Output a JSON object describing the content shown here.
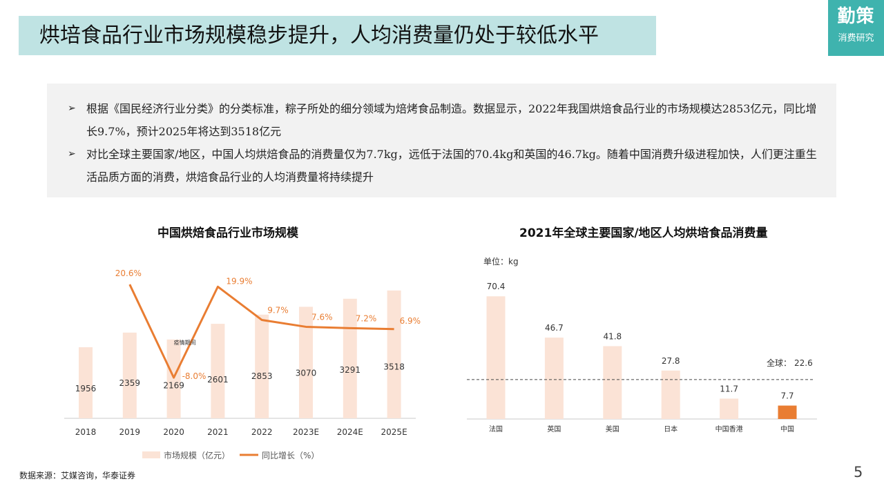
{
  "header": {
    "title": "烘培食品行业市场规模稳步提升，人均消费量仍处于较低水平",
    "logo_main": "勤策",
    "logo_sub": "消费研究"
  },
  "bullets": [
    "根据《国民经济行业分类》的分类标准，粽子所处的细分领域为焙烤食品制造。数据显示，2022年我国烘焙食品行业的市场规模达2853亿元，同比增长9.7%，预计2025年将达到3518亿元",
    "对比全球主要国家/地区，中国人均烘焙食品的消费量仅为7.7kg，远低于法国的70.4kg和英国的46.7kg。随着中国消费升级进程加快，人们更注重生活品质方面的消费，烘焙食品行业的人均消费量将持续提升"
  ],
  "bullet_marker": "➢",
  "chart_data": [
    {
      "type": "bar",
      "title": "中国烘焙食品行业市场规模",
      "categories": [
        "2018",
        "2019",
        "2020",
        "2021",
        "2022",
        "2023E",
        "2024E",
        "2025E"
      ],
      "series": [
        {
          "name": "市场规模（亿元）",
          "type": "bar",
          "values": [
            1956,
            2359,
            2169,
            2601,
            2853,
            3070,
            3291,
            3518
          ],
          "color": "#fbe3d6"
        },
        {
          "name": "同比增长（%）",
          "type": "line",
          "values": [
            null,
            20.6,
            -8.0,
            19.9,
            9.7,
            7.6,
            7.2,
            6.9
          ],
          "labels": [
            "",
            "20.6%",
            "-8.0%",
            "19.9%",
            "9.7%",
            "7.6%",
            "7.2%",
            "6.9%"
          ],
          "color": "#e97d32"
        }
      ],
      "bar_ylim": [
        0,
        3800
      ],
      "line_ylim": [
        -12,
        24
      ],
      "annotation": "疫情期间",
      "legend": "bottom",
      "grid": false
    },
    {
      "type": "bar",
      "title": "2021年全球主要国家/地区人均烘培食品消费量",
      "unit_label": "单位：kg",
      "categories": [
        "法国",
        "英国",
        "美国",
        "日本",
        "中国香港",
        "中国"
      ],
      "values": [
        70.4,
        46.7,
        41.8,
        27.8,
        11.7,
        7.7
      ],
      "bar_color": "#fbe3d6",
      "highlight_color": "#e97d32",
      "highlight_index": 5,
      "reference_line": {
        "label": "全球：",
        "value": 22.6,
        "value_label": "22.6"
      },
      "ylim": [
        0,
        80
      ],
      "grid": false
    }
  ],
  "footer": {
    "source": "数据来源：艾媒咨询，华泰证券",
    "page_number": "5"
  }
}
